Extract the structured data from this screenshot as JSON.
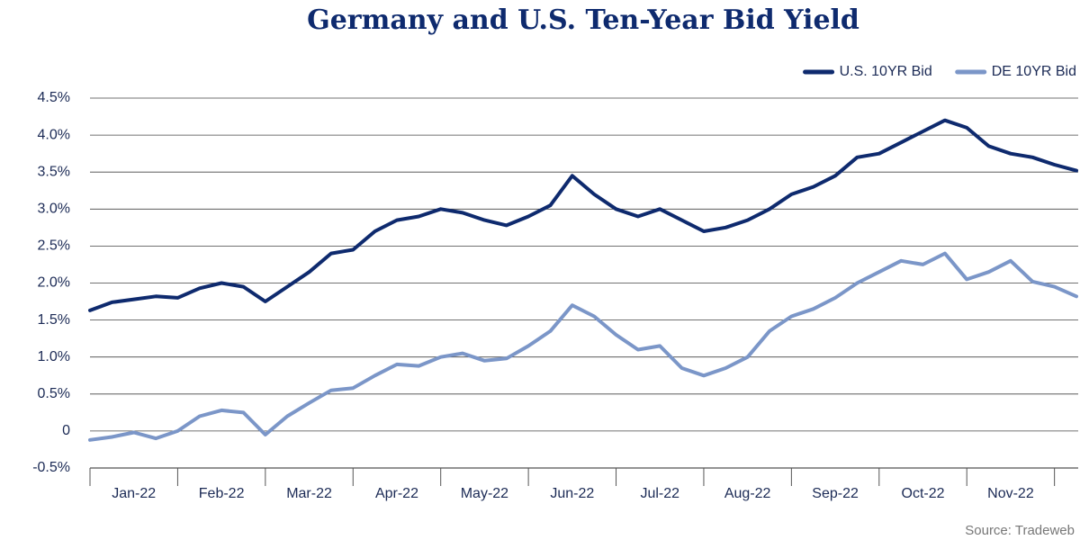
{
  "chart_data": {
    "type": "line",
    "title": "Germany and U.S. Ten-Year Bid Yield",
    "source": "Source: Tradeweb",
    "categories": [
      null,
      null,
      "Jan-22",
      null,
      null,
      null,
      "Feb-22",
      null,
      null,
      null,
      "Mar-22",
      null,
      null,
      null,
      "Apr-22",
      null,
      null,
      null,
      "May-22",
      null,
      null,
      null,
      "Jun-22",
      null,
      null,
      null,
      "Jul-22",
      null,
      null,
      null,
      "Aug-22",
      null,
      null,
      null,
      "Sep-22",
      null,
      null,
      null,
      "Oct-22",
      null,
      null,
      null,
      "Nov-22",
      null,
      null,
      null
    ],
    "series": [
      {
        "name": "U.S. 10YR Bid",
        "color": "#0e2a6e",
        "values": [
          1.63,
          1.74,
          1.78,
          1.82,
          1.8,
          1.93,
          2.0,
          1.95,
          1.75,
          1.95,
          2.15,
          2.4,
          2.45,
          2.7,
          2.85,
          2.9,
          3.0,
          2.95,
          2.85,
          2.78,
          2.9,
          3.05,
          3.45,
          3.2,
          3.0,
          2.9,
          3.0,
          2.85,
          2.7,
          2.75,
          2.85,
          3.0,
          3.2,
          3.3,
          3.45,
          3.7,
          3.75,
          3.9,
          4.05,
          4.2,
          4.1,
          3.85,
          3.75,
          3.7,
          3.6,
          3.52
        ]
      },
      {
        "name": "DE 10YR Bid",
        "color": "#7b96c8",
        "values": [
          -0.12,
          -0.08,
          -0.02,
          -0.1,
          0.0,
          0.2,
          0.28,
          0.25,
          -0.05,
          0.2,
          0.38,
          0.55,
          0.58,
          0.75,
          0.9,
          0.88,
          1.0,
          1.05,
          0.95,
          0.98,
          1.15,
          1.35,
          1.7,
          1.55,
          1.3,
          1.1,
          1.15,
          0.85,
          0.75,
          0.85,
          1.0,
          1.35,
          1.55,
          1.65,
          1.8,
          2.0,
          2.15,
          2.3,
          2.25,
          2.4,
          2.05,
          2.15,
          2.3,
          2.02,
          1.95,
          1.82
        ]
      }
    ],
    "ylim": [
      -0.5,
      4.5
    ],
    "yticks": [
      {
        "value": -0.5,
        "label": "-0.5%"
      },
      0,
      {
        "value": 0.5,
        "label": "0.5%"
      },
      {
        "value": 1,
        "label": "1.0%"
      },
      {
        "value": 1.5,
        "label": "1.5%"
      },
      {
        "value": 2,
        "label": "2.0%"
      },
      {
        "value": 2.5,
        "label": "2.5%"
      },
      {
        "value": 3,
        "label": "3.0%"
      },
      {
        "value": 3.5,
        "label": "3.5%"
      },
      {
        "value": 4,
        "label": "4.0%"
      },
      {
        "value": 4.5,
        "label": "4.5%"
      }
    ],
    "grid": true,
    "legend": "top-right"
  }
}
